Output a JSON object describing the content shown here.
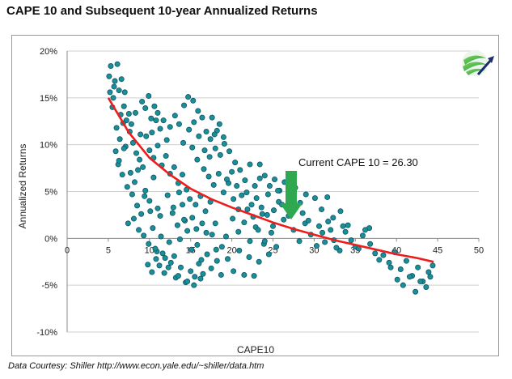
{
  "header": {
    "title": "CAPE 10 and Subsequent 10-year Annualized Returns"
  },
  "footer": {
    "source": "Data Courtesy: Shiller  http://www.econ.yale.edu/~shiller/data.htm"
  },
  "chart_data": {
    "type": "scatter",
    "xlabel": "CAPE10",
    "ylabel": "Annualized Returns",
    "xlim": [
      0,
      50
    ],
    "ylim": [
      -10,
      20
    ],
    "xticks": [
      "0",
      "5",
      "10",
      "15",
      "20",
      "25",
      "30",
      "35",
      "40",
      "45",
      "50"
    ],
    "yticks": [
      "-10%",
      "-5%",
      "0%",
      "5%",
      "10%",
      "15%",
      "20%"
    ],
    "grid": "horizontal",
    "annotation": "Current CAPE 10 = 26.30",
    "current_cape": 26.3,
    "colors": {
      "points": "#1a8f9a",
      "point_edge": "#0d5560",
      "trend": "#ee1c1c",
      "arrow": "#2fa84f",
      "grid": "#cfcfcf"
    },
    "series": [
      {
        "values": [
          [
            5.1,
            17.3
          ],
          [
            5.3,
            18.4
          ],
          [
            5.6,
            15.0
          ],
          [
            5.8,
            16.8
          ],
          [
            6.1,
            18.6
          ],
          [
            6.3,
            15.8
          ],
          [
            6.6,
            17.0
          ],
          [
            6.9,
            14.1
          ],
          [
            7.2,
            12.6
          ],
          [
            7.5,
            13.3
          ],
          [
            5.5,
            14.0
          ],
          [
            6.0,
            11.8
          ],
          [
            6.4,
            10.6
          ],
          [
            6.8,
            12.3
          ],
          [
            7.1,
            9.8
          ],
          [
            7.6,
            11.4
          ],
          [
            8.0,
            10.2
          ],
          [
            8.4,
            9.1
          ],
          [
            8.8,
            8.4
          ],
          [
            9.2,
            7.6
          ],
          [
            6.2,
            7.9
          ],
          [
            6.7,
            6.8
          ],
          [
            7.3,
            5.5
          ],
          [
            7.9,
            4.7
          ],
          [
            8.5,
            3.5
          ],
          [
            9.0,
            2.6
          ],
          [
            9.5,
            5.1
          ],
          [
            10.0,
            4.0
          ],
          [
            10.5,
            6.5
          ],
          [
            11.0,
            3.2
          ],
          [
            7.4,
            1.6
          ],
          [
            8.1,
            2.1
          ],
          [
            8.7,
            0.9
          ],
          [
            9.3,
            0.3
          ],
          [
            9.9,
            -0.6
          ],
          [
            10.4,
            1.1
          ],
          [
            10.9,
            -1.4
          ],
          [
            11.4,
            0.2
          ],
          [
            11.9,
            -2.1
          ],
          [
            12.4,
            -0.4
          ],
          [
            9.1,
            14.6
          ],
          [
            9.5,
            13.9
          ],
          [
            9.9,
            15.2
          ],
          [
            10.2,
            12.8
          ],
          [
            10.6,
            14.1
          ],
          [
            11.0,
            13.4
          ],
          [
            11.3,
            11.7
          ],
          [
            11.7,
            12.6
          ],
          [
            12.1,
            10.5
          ],
          [
            12.5,
            11.9
          ],
          [
            10.0,
            9.4
          ],
          [
            10.5,
            8.6
          ],
          [
            11.0,
            9.9
          ],
          [
            11.5,
            7.8
          ],
          [
            12.0,
            8.8
          ],
          [
            12.5,
            6.9
          ],
          [
            13.0,
            7.6
          ],
          [
            13.5,
            5.9
          ],
          [
            14.0,
            6.8
          ],
          [
            14.5,
            5.2
          ],
          [
            11.2,
            -2.9
          ],
          [
            11.8,
            -3.7
          ],
          [
            12.6,
            -2.6
          ],
          [
            13.2,
            -4.2
          ],
          [
            13.8,
            -3.1
          ],
          [
            14.4,
            -4.7
          ],
          [
            15.0,
            -3.5
          ],
          [
            15.5,
            -4.1
          ],
          [
            16.0,
            -2.7
          ],
          [
            16.5,
            -3.8
          ],
          [
            12.8,
            2.7
          ],
          [
            13.4,
            1.4
          ],
          [
            14.0,
            3.6
          ],
          [
            14.6,
            0.8
          ],
          [
            15.2,
            2.2
          ],
          [
            15.8,
            -0.7
          ],
          [
            16.4,
            1.6
          ],
          [
            17.0,
            -1.7
          ],
          [
            17.6,
            0.4
          ],
          [
            18.2,
            -2.4
          ],
          [
            14.2,
            14.2
          ],
          [
            14.7,
            15.1
          ],
          [
            15.3,
            14.7
          ],
          [
            15.9,
            13.6
          ],
          [
            16.4,
            12.9
          ],
          [
            16.9,
            11.4
          ],
          [
            17.4,
            10.6
          ],
          [
            18.0,
            9.6
          ],
          [
            18.6,
            8.9
          ],
          [
            19.1,
            10.1
          ],
          [
            15.2,
            9.7
          ],
          [
            15.8,
            8.4
          ],
          [
            16.6,
            7.4
          ],
          [
            17.2,
            6.6
          ],
          [
            17.8,
            5.7
          ],
          [
            18.4,
            6.9
          ],
          [
            19.0,
            4.9
          ],
          [
            19.6,
            5.9
          ],
          [
            20.2,
            4.2
          ],
          [
            20.8,
            3.1
          ],
          [
            17.6,
            12.9
          ],
          [
            18.2,
            11.5
          ],
          [
            19.0,
            10.8
          ],
          [
            19.7,
            9.3
          ],
          [
            20.4,
            8.1
          ],
          [
            21.0,
            7.3
          ],
          [
            21.6,
            6.2
          ],
          [
            22.2,
            7.9
          ],
          [
            22.8,
            5.6
          ],
          [
            23.4,
            6.4
          ],
          [
            18.8,
            -0.9
          ],
          [
            19.5,
            -2.2
          ],
          [
            20.2,
            -3.5
          ],
          [
            20.9,
            -1.3
          ],
          [
            21.5,
            -3.9
          ],
          [
            22.1,
            -2.0
          ],
          [
            22.7,
            -4.0
          ],
          [
            23.3,
            -2.5
          ],
          [
            23.9,
            -0.6
          ],
          [
            24.5,
            -1.7
          ],
          [
            20.1,
            2.1
          ],
          [
            20.8,
            0.7
          ],
          [
            21.5,
            1.7
          ],
          [
            22.2,
            -0.3
          ],
          [
            22.9,
            1.2
          ],
          [
            23.6,
            3.3
          ],
          [
            24.3,
            2.5
          ],
          [
            25.0,
            1.3
          ],
          [
            25.7,
            3.9
          ],
          [
            26.3,
            2.0
          ],
          [
            23.4,
            7.9
          ],
          [
            24.0,
            6.7
          ],
          [
            24.6,
            5.6
          ],
          [
            25.2,
            6.3
          ],
          [
            25.8,
            5.1
          ],
          [
            26.4,
            6.0
          ],
          [
            27.0,
            4.5
          ],
          [
            27.7,
            5.4
          ],
          [
            28.3,
            3.8
          ],
          [
            29.0,
            4.7
          ],
          [
            27.5,
            0.9
          ],
          [
            28.2,
            -0.3
          ],
          [
            28.9,
            1.6
          ],
          [
            29.6,
            0.4
          ],
          [
            30.3,
            -0.8
          ],
          [
            31.0,
            0.6
          ],
          [
            31.7,
            1.8
          ],
          [
            32.4,
            -0.2
          ],
          [
            33.1,
            -1.3
          ],
          [
            33.8,
            0.7
          ],
          [
            30.1,
            4.3
          ],
          [
            30.9,
            3.1
          ],
          [
            31.6,
            4.4
          ],
          [
            32.3,
            2.2
          ],
          [
            33.2,
            2.9
          ],
          [
            34.1,
            1.4
          ],
          [
            35.0,
            -0.9
          ],
          [
            35.9,
            0.3
          ],
          [
            36.7,
            1.1
          ],
          [
            37.4,
            -1.6
          ],
          [
            38.4,
            -1.8
          ],
          [
            39.1,
            -2.6
          ],
          [
            39.8,
            -1.5
          ],
          [
            40.5,
            -3.3
          ],
          [
            41.2,
            -2.4
          ],
          [
            41.9,
            -4.0
          ],
          [
            42.6,
            -3.1
          ],
          [
            43.2,
            -4.6
          ],
          [
            43.9,
            -3.6
          ],
          [
            44.4,
            -2.9
          ],
          [
            40.1,
            -4.4
          ],
          [
            40.8,
            -5.0
          ],
          [
            41.6,
            -4.1
          ],
          [
            42.3,
            -5.7
          ],
          [
            42.9,
            -4.6
          ],
          [
            43.6,
            -5.2
          ],
          [
            44.1,
            -4.1
          ],
          [
            39.3,
            -3.1
          ],
          [
            37.9,
            -2.3
          ],
          [
            36.8,
            -0.6
          ],
          [
            5.2,
            15.6
          ],
          [
            5.7,
            16.2
          ],
          [
            6.5,
            13.2
          ],
          [
            7.0,
            15.6
          ],
          [
            7.8,
            12.2
          ],
          [
            8.3,
            13.4
          ],
          [
            8.9,
            11.1
          ],
          [
            9.6,
            10.9
          ],
          [
            10.3,
            11.3
          ],
          [
            10.8,
            12.6
          ],
          [
            13.1,
            13.1
          ],
          [
            13.6,
            12.2
          ],
          [
            14.1,
            10.2
          ],
          [
            14.8,
            11.6
          ],
          [
            15.4,
            12.4
          ],
          [
            16.0,
            10.9
          ],
          [
            16.7,
            9.4
          ],
          [
            17.3,
            8.7
          ],
          [
            17.9,
            11.1
          ],
          [
            18.5,
            12.2
          ],
          [
            13.7,
            -0.1
          ],
          [
            14.3,
            1.9
          ],
          [
            15.1,
            -1.2
          ],
          [
            15.7,
            1.0
          ],
          [
            16.3,
            -2.3
          ],
          [
            16.9,
            0.6
          ],
          [
            17.5,
            -3.2
          ],
          [
            18.1,
            -1.2
          ],
          [
            18.7,
            -3.9
          ],
          [
            19.3,
            0.2
          ],
          [
            21.8,
            4.9
          ],
          [
            22.4,
            3.6
          ],
          [
            23.0,
            4.3
          ],
          [
            23.7,
            2.6
          ],
          [
            24.4,
            4.7
          ],
          [
            25.1,
            3.0
          ],
          [
            25.6,
            5.1
          ],
          [
            26.1,
            3.6
          ],
          [
            26.9,
            2.4
          ],
          [
            27.4,
            3.6
          ],
          [
            28.6,
            2.7
          ],
          [
            29.3,
            1.9
          ],
          [
            30.6,
            1.3
          ],
          [
            31.3,
            -0.4
          ],
          [
            32.0,
            0.9
          ],
          [
            32.7,
            -1.0
          ],
          [
            33.5,
            1.3
          ],
          [
            34.5,
            -0.2
          ],
          [
            35.4,
            -1.1
          ],
          [
            36.2,
            0.9
          ],
          [
            5.9,
            9.3
          ],
          [
            6.3,
            8.3
          ],
          [
            6.9,
            9.6
          ],
          [
            7.7,
            7.0
          ],
          [
            8.2,
            6.0
          ],
          [
            8.6,
            7.3
          ],
          [
            9.4,
            4.5
          ],
          [
            10.1,
            2.9
          ],
          [
            10.7,
            -1.1
          ],
          [
            11.3,
            2.4
          ],
          [
            12.2,
            4.6
          ],
          [
            12.9,
            3.3
          ],
          [
            13.6,
            4.9
          ],
          [
            14.2,
            2.0
          ],
          [
            14.9,
            4.2
          ],
          [
            15.6,
            3.6
          ],
          [
            16.2,
            4.5
          ],
          [
            16.8,
            2.9
          ],
          [
            17.4,
            3.9
          ],
          [
            18.0,
            1.6
          ],
          [
            19.4,
            6.3
          ],
          [
            20.0,
            7.1
          ],
          [
            20.6,
            5.6
          ],
          [
            21.2,
            4.6
          ],
          [
            21.9,
            3.1
          ],
          [
            22.6,
            2.3
          ],
          [
            23.2,
            0.9
          ],
          [
            24.0,
            -0.3
          ],
          [
            24.8,
            0.6
          ],
          [
            25.4,
            -0.9
          ],
          [
            9.8,
            -2.8
          ],
          [
            10.3,
            -3.6
          ],
          [
            10.8,
            -2.2
          ],
          [
            11.6,
            -1.6
          ],
          [
            12.3,
            -3.1
          ],
          [
            13.0,
            -1.9
          ],
          [
            13.5,
            -4.0
          ],
          [
            14.6,
            -4.6
          ],
          [
            15.4,
            -5.0
          ],
          [
            16.2,
            -4.3
          ]
        ]
      }
    ],
    "trend": [
      [
        5,
        15.0
      ],
      [
        7.5,
        11.3
      ],
      [
        10,
        8.6
      ],
      [
        12.5,
        6.8
      ],
      [
        15,
        5.3
      ],
      [
        17.5,
        4.2
      ],
      [
        20,
        3.3
      ],
      [
        22.5,
        2.5
      ],
      [
        25,
        1.7
      ],
      [
        27.5,
        1.0
      ],
      [
        30,
        0.4
      ],
      [
        32.5,
        -0.2
      ],
      [
        35,
        -0.7
      ],
      [
        37.5,
        -1.2
      ],
      [
        40,
        -1.7
      ],
      [
        42.5,
        -2.1
      ],
      [
        44.5,
        -2.5
      ]
    ]
  }
}
